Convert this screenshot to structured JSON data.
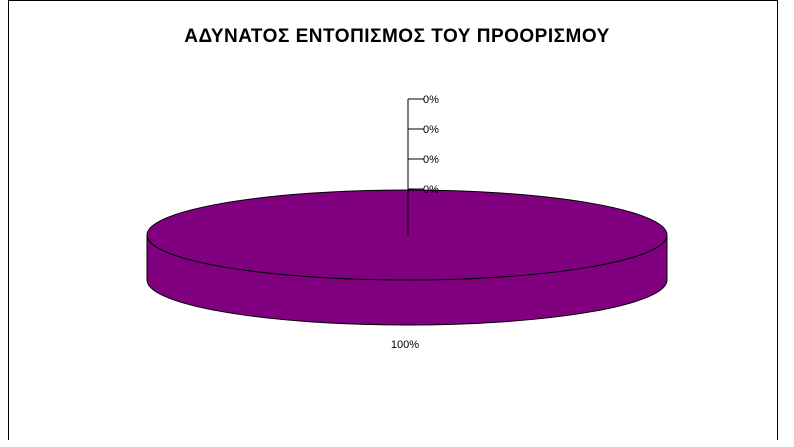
{
  "chart_data": {
    "type": "pie",
    "title": "ΑΔΥΝΑΤΟΣ ΕΝΤΟΠΙΣΜΟΣ ΤΟΥ ΠΡΟΟΡΙΣΜΟΥ",
    "slices": [
      {
        "value": 100,
        "label": "100%",
        "color": "#800080"
      },
      {
        "value": 0,
        "label": "0%",
        "color": "#000000"
      },
      {
        "value": 0,
        "label": "0%",
        "color": "#000000"
      },
      {
        "value": 0,
        "label": "0%",
        "color": "#000000"
      },
      {
        "value": 0,
        "label": "0%",
        "color": "#000000"
      }
    ],
    "three_d": true,
    "legend": "none"
  }
}
